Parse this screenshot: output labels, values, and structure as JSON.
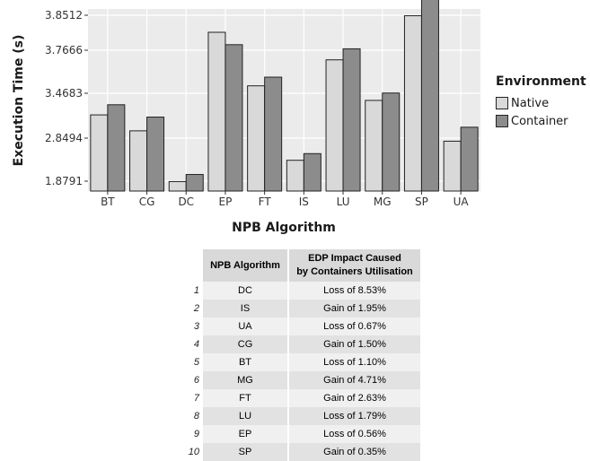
{
  "chart_data": {
    "type": "bar",
    "xlabel": "NPB Algorithm",
    "ylabel": "Execution Time (s)",
    "ytick_labels": [
      "1.8791",
      "2.8494",
      "3.4683",
      "3.7666",
      "3.8512"
    ],
    "categories": [
      "BT",
      "CG",
      "DC",
      "EP",
      "FT",
      "IS",
      "LU",
      "MG",
      "SP",
      "UA"
    ],
    "series": [
      {
        "name": "Native",
        "color": "#d9d9d9",
        "values": [
          3.17,
          2.95,
          1.87,
          3.81,
          3.52,
          2.35,
          3.7,
          3.37,
          3.85,
          2.78
        ]
      },
      {
        "name": "Container",
        "color": "#8c8c8c",
        "values": [
          3.31,
          3.14,
          2.03,
          3.78,
          3.58,
          2.5,
          3.77,
          3.47,
          3.9,
          3.0
        ]
      }
    ],
    "legend": {
      "title": "Environment",
      "position": "right"
    },
    "grid": true,
    "background": "#ebebeb"
  },
  "table": {
    "headers": [
      "NPB Algorithm",
      "EDP Impact Caused",
      "by Containers Utilisation"
    ],
    "rows": [
      {
        "index": "1",
        "algorithm": "DC",
        "edp": "Loss of 8.53%"
      },
      {
        "index": "2",
        "algorithm": "IS",
        "edp": "Gain of 1.95%"
      },
      {
        "index": "3",
        "algorithm": "UA",
        "edp": "Loss of 0.67%"
      },
      {
        "index": "4",
        "algorithm": "CG",
        "edp": "Gain of 1.50%"
      },
      {
        "index": "5",
        "algorithm": "BT",
        "edp": "Loss of 1.10%"
      },
      {
        "index": "6",
        "algorithm": "MG",
        "edp": "Gain of 4.71%"
      },
      {
        "index": "7",
        "algorithm": "FT",
        "edp": "Gain of 2.63%"
      },
      {
        "index": "8",
        "algorithm": "LU",
        "edp": "Loss of 1.79%"
      },
      {
        "index": "9",
        "algorithm": "EP",
        "edp": "Loss of 0.56%"
      },
      {
        "index": "10",
        "algorithm": "SP",
        "edp": "Gain of 0.35%"
      }
    ]
  }
}
